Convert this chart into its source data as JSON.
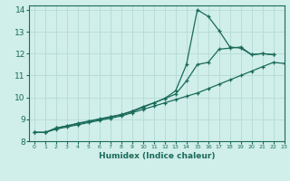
{
  "xlabel": "Humidex (Indice chaleur)",
  "ylabel": "",
  "xlim": [
    -0.5,
    23
  ],
  "ylim": [
    8,
    14.2
  ],
  "xticks": [
    0,
    1,
    2,
    3,
    4,
    5,
    6,
    7,
    8,
    9,
    10,
    11,
    12,
    13,
    14,
    15,
    16,
    17,
    18,
    19,
    20,
    21,
    22,
    23
  ],
  "yticks": [
    8,
    9,
    10,
    11,
    12,
    13,
    14
  ],
  "background_color": "#d0eeea",
  "grid_color": "#b8ddd8",
  "line_color": "#1a6b5a",
  "lines": [
    {
      "x": [
        0,
        1,
        2,
        3,
        4,
        5,
        6,
        7,
        8,
        9,
        10,
        11,
        12,
        13,
        14,
        15,
        16,
        17,
        18,
        19,
        20,
        21,
        22,
        23
      ],
      "y": [
        8.4,
        8.4,
        8.55,
        8.65,
        8.75,
        8.85,
        8.95,
        9.05,
        9.15,
        9.3,
        9.45,
        9.6,
        9.75,
        9.9,
        10.05,
        10.2,
        10.4,
        10.6,
        10.8,
        11.0,
        11.2,
        11.4,
        11.6,
        11.55
      ]
    },
    {
      "x": [
        0,
        1,
        2,
        3,
        4,
        5,
        6,
        7,
        8,
        9,
        10,
        11,
        12,
        13,
        14,
        15,
        16,
        17,
        18,
        19,
        20,
        21,
        22
      ],
      "y": [
        8.4,
        8.4,
        8.6,
        8.7,
        8.8,
        8.9,
        9.0,
        9.1,
        9.2,
        9.35,
        9.55,
        9.75,
        9.95,
        10.15,
        10.75,
        11.5,
        11.6,
        12.2,
        12.25,
        12.3,
        11.95,
        12.0,
        11.95
      ]
    },
    {
      "x": [
        0,
        1,
        2,
        3,
        4,
        5,
        6,
        7,
        8,
        9,
        10,
        11,
        12,
        13,
        14,
        15,
        16,
        17,
        18,
        19,
        20,
        21,
        22,
        23
      ],
      "y": [
        8.4,
        8.4,
        8.6,
        8.7,
        8.82,
        8.92,
        9.02,
        9.12,
        9.22,
        9.38,
        9.58,
        9.75,
        9.95,
        10.3,
        11.5,
        14.0,
        13.7,
        13.05,
        12.3,
        12.25,
        11.95,
        12.0,
        11.95,
        null
      ]
    }
  ]
}
